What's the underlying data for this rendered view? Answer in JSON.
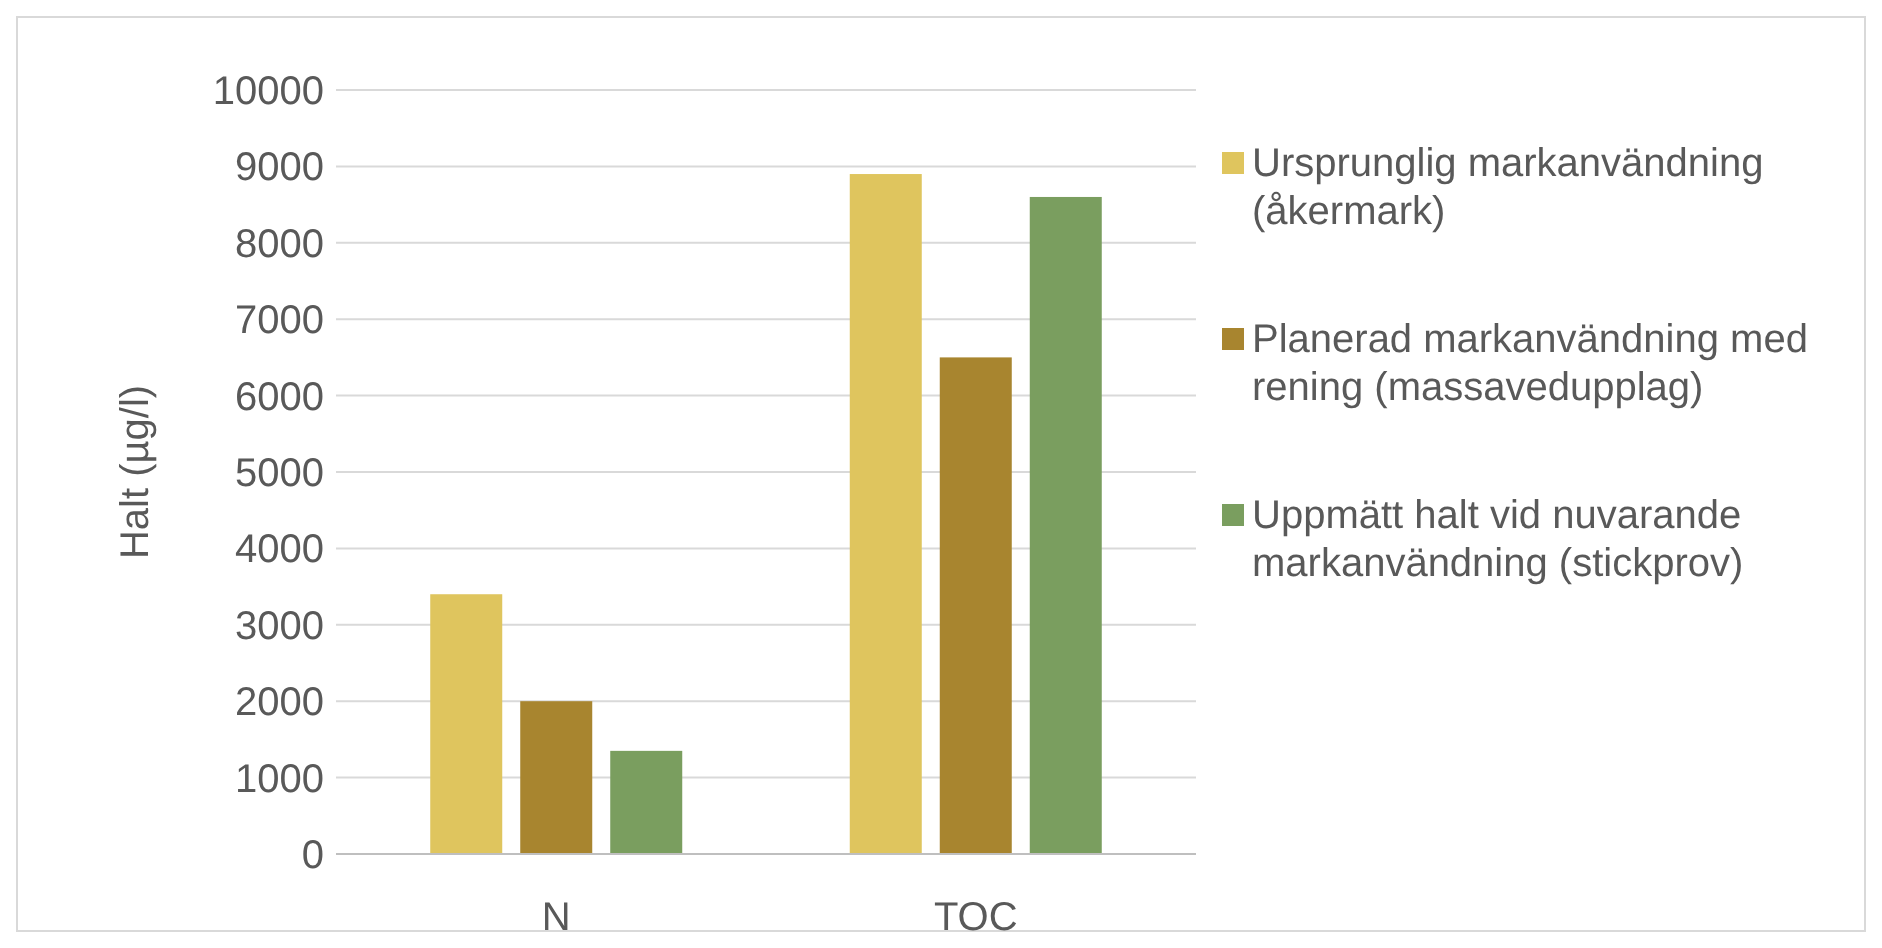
{
  "chart_data": {
    "type": "bar",
    "ylabel": "Halt (µg/l)",
    "categories": [
      "N",
      "TOC"
    ],
    "series": [
      {
        "name": "Ursprunglig markanvändning (åkermark)",
        "color": "#dfc55e",
        "values": [
          3400,
          8900
        ]
      },
      {
        "name": "Planerad markanvändning med rening (massavedupplag)",
        "color": "#a8852f",
        "values": [
          2000,
          6500
        ]
      },
      {
        "name": "Uppmätt halt vid nuvarande markanvändning (stickprov)",
        "color": "#7a9e5f",
        "values": [
          1350,
          8600
        ]
      }
    ],
    "ylim": [
      0,
      10000
    ],
    "yticks": [
      0,
      1000,
      2000,
      3000,
      4000,
      5000,
      6000,
      7000,
      8000,
      9000,
      10000
    ],
    "grid": "y",
    "legend": "right"
  }
}
